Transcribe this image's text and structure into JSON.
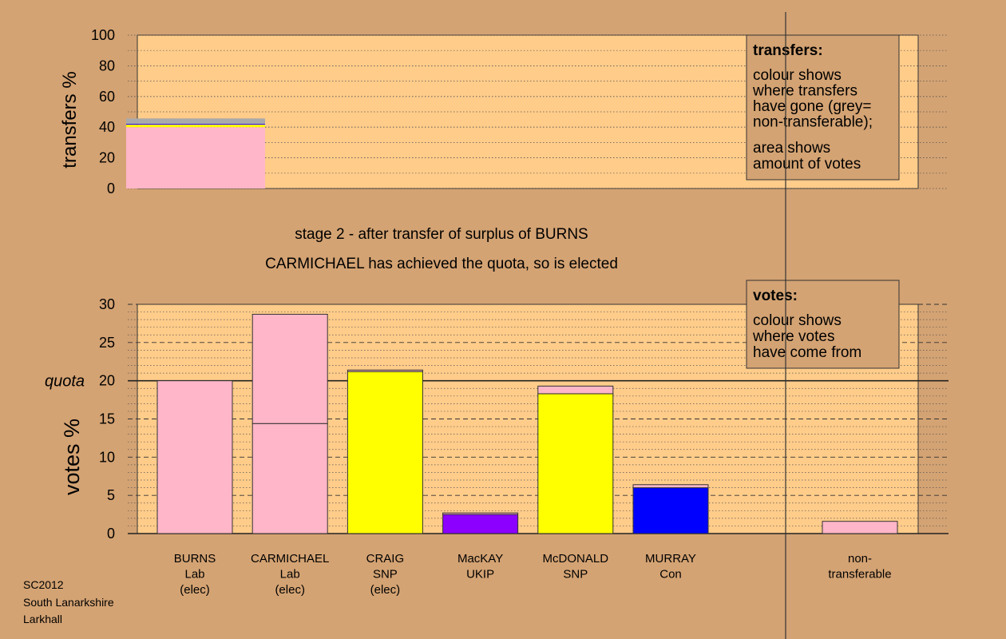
{
  "chart_data": [
    {
      "type": "bar",
      "stacked": true,
      "ylabel": "transfers %",
      "ylim": [
        0,
        100
      ],
      "yticks": [
        0,
        20,
        40,
        60,
        80,
        100
      ],
      "grid": true,
      "legend": {
        "placement": "top-right",
        "title": "transfers:",
        "lines": [
          "colour shows",
          "where transfers",
          "have gone (grey=",
          "non-transferable);"
        ],
        "lines2": [
          "area shows",
          "amount of votes"
        ]
      },
      "stack": [
        {
          "name": "Lab",
          "value": 40.0,
          "color": "#FFB6C8"
        },
        {
          "name": "SNP",
          "value": 1.6,
          "color": "#FFFF00"
        },
        {
          "name": "UKIP",
          "value": 0.2,
          "color": "#8B00FF"
        },
        {
          "name": "Con",
          "value": 0.4,
          "color": "#0000FF"
        },
        {
          "name": "non-transferable",
          "value": 3.5,
          "color": "#AAAAAA"
        }
      ]
    },
    {
      "type": "bar",
      "stacked": true,
      "ylabel": "votes %",
      "ylim": [
        0,
        30
      ],
      "yticks": [
        0,
        5,
        10,
        15,
        20,
        25,
        30
      ],
      "grid": true,
      "quota": 20,
      "quota_label": "quota",
      "legend": {
        "placement": "top-right",
        "title": "votes:",
        "lines": [
          "colour shows",
          "where votes",
          "have come from"
        ]
      },
      "candidates": [
        {
          "label": [
            "BURNS",
            "Lab",
            "(elec)"
          ],
          "segments": [
            {
              "value": 20.0,
              "color": "#FFB6C8"
            }
          ]
        },
        {
          "label": [
            "CARMICHAEL",
            "Lab",
            "(elec)"
          ],
          "segments": [
            {
              "value": 14.4,
              "color": "#FFB6C8"
            },
            {
              "value": 14.3,
              "color": "#FFB6C8"
            }
          ]
        },
        {
          "label": [
            "CRAIG",
            "SNP",
            "(elec)"
          ],
          "segments": [
            {
              "value": 21.2,
              "color": "#FFFF00"
            },
            {
              "value": 0.2,
              "color": "#FFB6C8"
            }
          ]
        },
        {
          "label": [
            "MacKAY",
            "UKIP"
          ],
          "segments": [
            {
              "value": 2.5,
              "color": "#8B00FF"
            },
            {
              "value": 0.2,
              "color": "#FFB6C8"
            }
          ]
        },
        {
          "label": [
            "McDONALD",
            "SNP"
          ],
          "segments": [
            {
              "value": 18.3,
              "color": "#FFFF00"
            },
            {
              "value": 1.0,
              "color": "#FFB6C8"
            }
          ]
        },
        {
          "label": [
            "MURRAY",
            "Con"
          ],
          "segments": [
            {
              "value": 6.0,
              "color": "#0000FF"
            },
            {
              "value": 0.4,
              "color": "#FFB6C8"
            }
          ]
        }
      ],
      "nontransferable": {
        "label": [
          "non-",
          "transferable"
        ],
        "segments": [
          {
            "value": 1.6,
            "color": "#FFB6C8"
          }
        ]
      }
    }
  ],
  "captions": {
    "stage": "stage 2 - after transfer of surplus of BURNS",
    "status": "CARMICHAEL has achieved the quota, so is elected"
  },
  "footer": [
    "SC2012",
    "South Lanarkshire",
    "Larkhall"
  ],
  "colors": {
    "background": "#D4A373",
    "plot": "#FFCC8A",
    "Lab": "#FFB6C8",
    "SNP": "#FFFF00",
    "UKIP": "#8B00FF",
    "Con": "#0000FF",
    "nontransferable": "#AAAAAA"
  }
}
